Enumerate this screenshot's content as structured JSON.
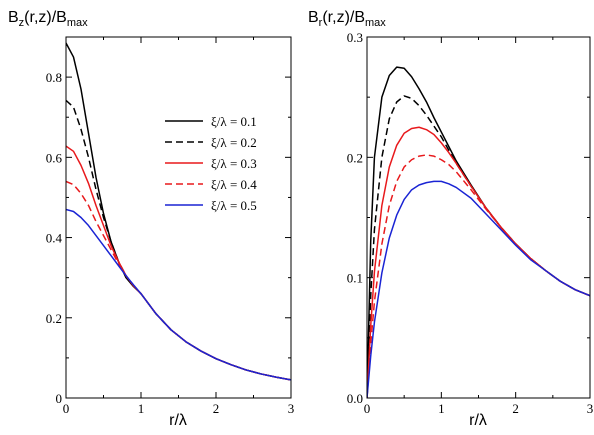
{
  "colors": {
    "black": "#000000",
    "red": "#e8191c",
    "blue": "#1a24d4"
  },
  "chart_data": [
    {
      "type": "line",
      "title_main": "B",
      "title_sub1": "z",
      "title_mid": "(r,z)/B",
      "title_sub2": "max",
      "xlabel": "r/λ",
      "ylabel": "",
      "xlim": [
        0,
        3
      ],
      "ylim": [
        0,
        0.9
      ],
      "xticks": [
        0,
        1,
        2,
        3
      ],
      "xtick_labels": [
        "0",
        "1",
        "2",
        "3"
      ],
      "yticks": [
        0,
        0.2,
        0.4,
        0.6,
        0.8
      ],
      "ytick_labels": [
        "0",
        "0.2",
        "0.4",
        "0.6",
        "0.8"
      ],
      "x": [
        0,
        0.1,
        0.2,
        0.3,
        0.4,
        0.5,
        0.6,
        0.7,
        0.8,
        0.9,
        1.0,
        1.2,
        1.4,
        1.6,
        1.8,
        2.0,
        2.2,
        2.4,
        2.6,
        2.8,
        3.0
      ],
      "legend_position": "top-right",
      "series": [
        {
          "name": "ξ/λ = 0.1",
          "color": "black",
          "dash": "solid",
          "values": [
            0.885,
            0.85,
            0.77,
            0.66,
            0.55,
            0.46,
            0.39,
            0.34,
            0.3,
            0.278,
            0.26,
            0.21,
            0.17,
            0.14,
            0.117,
            0.098,
            0.083,
            0.07,
            0.06,
            0.052,
            0.045
          ]
        },
        {
          "name": "ξ/λ = 0.2",
          "color": "black",
          "dash": "dashed",
          "values": [
            0.742,
            0.725,
            0.67,
            0.6,
            0.52,
            0.45,
            0.39,
            0.34,
            0.305,
            0.28,
            0.26,
            0.21,
            0.17,
            0.14,
            0.117,
            0.098,
            0.083,
            0.07,
            0.06,
            0.052,
            0.045
          ]
        },
        {
          "name": "ξ/λ = 0.3",
          "color": "red",
          "dash": "solid",
          "values": [
            0.628,
            0.615,
            0.58,
            0.535,
            0.48,
            0.43,
            0.38,
            0.34,
            0.305,
            0.28,
            0.26,
            0.21,
            0.17,
            0.14,
            0.117,
            0.098,
            0.083,
            0.07,
            0.06,
            0.052,
            0.045
          ]
        },
        {
          "name": "ξ/λ = 0.4",
          "color": "red",
          "dash": "dashed",
          "values": [
            0.54,
            0.532,
            0.51,
            0.48,
            0.44,
            0.405,
            0.37,
            0.335,
            0.305,
            0.28,
            0.26,
            0.21,
            0.17,
            0.14,
            0.117,
            0.098,
            0.083,
            0.07,
            0.06,
            0.052,
            0.045
          ]
        },
        {
          "name": "ξ/λ = 0.5",
          "color": "blue",
          "dash": "solid",
          "values": [
            0.47,
            0.465,
            0.45,
            0.43,
            0.405,
            0.38,
            0.355,
            0.33,
            0.305,
            0.282,
            0.26,
            0.21,
            0.17,
            0.14,
            0.117,
            0.098,
            0.083,
            0.07,
            0.06,
            0.052,
            0.045
          ]
        }
      ]
    },
    {
      "type": "line",
      "title_main": "B",
      "title_sub1": "r",
      "title_mid": "(r,z)/B",
      "title_sub2": "max",
      "xlabel": "r/λ",
      "ylabel": "",
      "xlim": [
        0,
        3
      ],
      "ylim": [
        0,
        0.3
      ],
      "xticks": [
        0,
        1,
        2,
        3
      ],
      "xtick_labels": [
        "0",
        "1",
        "2",
        "3"
      ],
      "yticks": [
        0,
        0.1,
        0.2,
        0.3
      ],
      "ytick_labels": [
        "0.0",
        "0.1",
        "0.2",
        "0.3"
      ],
      "x": [
        0,
        0.05,
        0.1,
        0.2,
        0.3,
        0.4,
        0.5,
        0.6,
        0.7,
        0.8,
        0.9,
        1.0,
        1.1,
        1.2,
        1.4,
        1.6,
        1.8,
        2.0,
        2.2,
        2.4,
        2.6,
        2.8,
        3.0
      ],
      "series": [
        {
          "name": "ξ/λ = 0.1",
          "color": "black",
          "dash": "solid",
          "values": [
            0,
            0.13,
            0.2,
            0.25,
            0.268,
            0.275,
            0.274,
            0.267,
            0.257,
            0.246,
            0.233,
            0.221,
            0.209,
            0.197,
            0.177,
            0.158,
            0.142,
            0.128,
            0.116,
            0.106,
            0.097,
            0.09,
            0.085
          ]
        },
        {
          "name": "ξ/λ = 0.2",
          "color": "black",
          "dash": "dashed",
          "values": [
            0,
            0.085,
            0.14,
            0.2,
            0.232,
            0.246,
            0.251,
            0.249,
            0.243,
            0.235,
            0.226,
            0.217,
            0.206,
            0.195,
            0.176,
            0.158,
            0.142,
            0.128,
            0.116,
            0.106,
            0.097,
            0.09,
            0.085
          ]
        },
        {
          "name": "ξ/λ = 0.3",
          "color": "red",
          "dash": "solid",
          "values": [
            0,
            0.06,
            0.105,
            0.16,
            0.192,
            0.21,
            0.22,
            0.224,
            0.225,
            0.223,
            0.219,
            0.212,
            0.204,
            0.195,
            0.176,
            0.158,
            0.142,
            0.128,
            0.116,
            0.106,
            0.097,
            0.09,
            0.085
          ]
        },
        {
          "name": "ξ/λ = 0.4",
          "color": "red",
          "dash": "dashed",
          "values": [
            0,
            0.045,
            0.08,
            0.128,
            0.16,
            0.18,
            0.192,
            0.198,
            0.201,
            0.202,
            0.201,
            0.198,
            0.194,
            0.188,
            0.173,
            0.157,
            0.142,
            0.128,
            0.116,
            0.106,
            0.097,
            0.09,
            0.085
          ]
        },
        {
          "name": "ξ/λ = 0.5",
          "color": "blue",
          "dash": "solid",
          "values": [
            0,
            0.035,
            0.063,
            0.104,
            0.133,
            0.152,
            0.165,
            0.173,
            0.177,
            0.179,
            0.18,
            0.18,
            0.178,
            0.175,
            0.166,
            0.153,
            0.14,
            0.127,
            0.115,
            0.106,
            0.097,
            0.09,
            0.085
          ]
        }
      ]
    }
  ]
}
